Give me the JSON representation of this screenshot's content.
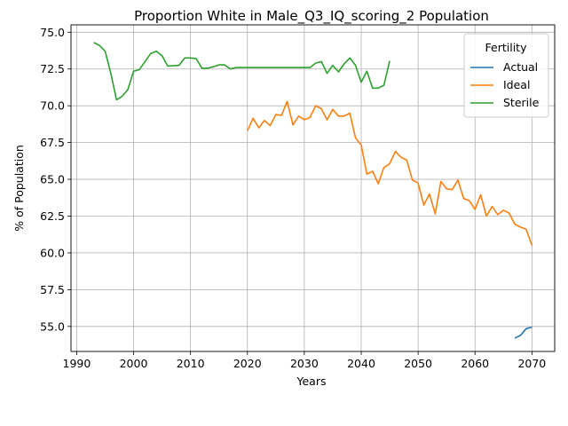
{
  "chart_data": {
    "type": "line",
    "title": "Proportion White in Male_Q3_IQ_scoring_2 Population",
    "xlabel": "Years",
    "ylabel": "% of Population",
    "xlim": [
      1989,
      2074
    ],
    "ylim": [
      53.3,
      75.5
    ],
    "xticks": [
      1990,
      2000,
      2010,
      2020,
      2030,
      2040,
      2050,
      2060,
      2070
    ],
    "yticks": [
      55.0,
      57.5,
      60.0,
      62.5,
      65.0,
      67.5,
      70.0,
      72.5,
      75.0
    ],
    "xtick_labels": [
      "1990",
      "2000",
      "2010",
      "2020",
      "2030",
      "2040",
      "2050",
      "2060",
      "2070"
    ],
    "ytick_labels": [
      "55.0",
      "57.5",
      "60.0",
      "62.5",
      "65.0",
      "67.5",
      "70.0",
      "72.5",
      "75.0"
    ],
    "grid": true,
    "legend": {
      "title": "Fertility",
      "placement": "top-right"
    },
    "series": [
      {
        "name": "Actual",
        "color": "#1f77b4",
        "x": [
          2067,
          2068,
          2069,
          2070
        ],
        "y": [
          54.2,
          54.4,
          54.85,
          54.95
        ]
      },
      {
        "name": "Ideal",
        "color": "#ff7f0e",
        "x": [
          2020,
          2021,
          2022,
          2023,
          2024,
          2025,
          2026,
          2027,
          2028,
          2029,
          2030,
          2031,
          2032,
          2033,
          2034,
          2035,
          2036,
          2037,
          2038,
          2039,
          2040,
          2041,
          2042,
          2043,
          2044,
          2045,
          2046,
          2047,
          2048,
          2049,
          2050,
          2051,
          2052,
          2053,
          2054,
          2055,
          2056,
          2057,
          2058,
          2059,
          2060,
          2061,
          2062,
          2063,
          2064,
          2065,
          2066,
          2067,
          2068,
          2069,
          2070
        ],
        "y": [
          68.3,
          69.15,
          68.5,
          69.0,
          68.65,
          69.4,
          69.35,
          70.3,
          68.7,
          69.3,
          69.05,
          69.2,
          70.0,
          69.8,
          69.05,
          69.75,
          69.3,
          69.3,
          69.5,
          67.8,
          67.35,
          65.35,
          65.55,
          64.7,
          65.8,
          66.05,
          66.9,
          66.5,
          66.3,
          64.95,
          64.75,
          63.25,
          64.0,
          62.65,
          64.85,
          64.35,
          64.3,
          64.95,
          63.7,
          63.55,
          62.95,
          63.95,
          62.5,
          63.15,
          62.6,
          62.9,
          62.7,
          61.95,
          61.75,
          61.6,
          60.5
        ]
      },
      {
        "name": "Sterile",
        "color": "#2ca02c",
        "x": [
          1993,
          1994,
          1995,
          1996,
          1997,
          1998,
          1999,
          2000,
          2001,
          2002,
          2003,
          2004,
          2005,
          2006,
          2007,
          2008,
          2009,
          2010,
          2011,
          2012,
          2013,
          2014,
          2015,
          2016,
          2017,
          2018,
          2019,
          2020,
          2021,
          2022,
          2023,
          2024,
          2025,
          2026,
          2027,
          2028,
          2029,
          2030,
          2031,
          2032,
          2033,
          2034,
          2035,
          2036,
          2037,
          2038,
          2039,
          2040,
          2041,
          2042,
          2043,
          2044,
          2045
        ],
        "y": [
          74.3,
          74.1,
          73.7,
          72.2,
          70.4,
          70.65,
          71.1,
          72.35,
          72.45,
          73.0,
          73.55,
          73.7,
          73.4,
          72.7,
          72.72,
          72.75,
          73.25,
          73.25,
          73.2,
          72.55,
          72.55,
          72.65,
          72.78,
          72.78,
          72.5,
          72.6,
          72.6,
          72.6,
          72.6,
          72.6,
          72.6,
          72.6,
          72.6,
          72.6,
          72.6,
          72.6,
          72.6,
          72.6,
          72.6,
          72.9,
          73.0,
          72.2,
          72.75,
          72.3,
          72.85,
          73.25,
          72.75,
          71.6,
          72.35,
          71.2,
          71.2,
          71.4,
          73.05
        ]
      }
    ]
  }
}
